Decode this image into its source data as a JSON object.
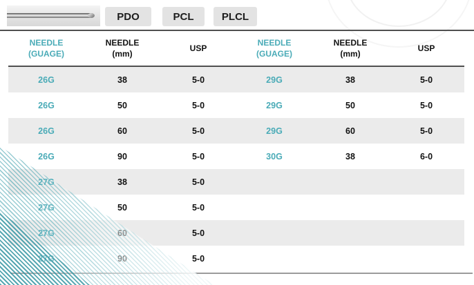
{
  "tabs": [
    {
      "label": "PDO"
    },
    {
      "label": "PCL"
    },
    {
      "label": "PLCL"
    }
  ],
  "table": {
    "headers": [
      "NEEDLE\n(GUAGE)",
      "NEEDLE\n(mm)",
      "USP",
      "NEEDLE\n(GUAGE)",
      "NEEDLE\n(mm)",
      "USP"
    ],
    "rows": [
      {
        "cells": [
          "26G",
          "38",
          "5-0",
          "29G",
          "38",
          "5-0"
        ]
      },
      {
        "cells": [
          "26G",
          "50",
          "5-0",
          "29G",
          "50",
          "5-0"
        ]
      },
      {
        "cells": [
          "26G",
          "60",
          "5-0",
          "29G",
          "60",
          "5-0"
        ]
      },
      {
        "cells": [
          "26G",
          "90",
          "5-0",
          "30G",
          "38",
          "6-0"
        ]
      },
      {
        "cells": [
          "27G",
          "38",
          "5-0",
          "",
          "",
          ""
        ]
      },
      {
        "cells": [
          "27G",
          "50",
          "5-0",
          "",
          "",
          ""
        ]
      },
      {
        "cells": [
          "27G",
          "60",
          "5-0",
          "",
          "",
          ""
        ]
      },
      {
        "cells": [
          "27G",
          "90",
          "5-0",
          "",
          "",
          ""
        ]
      }
    ]
  },
  "colors": {
    "accent": "#4aabb7",
    "row_alt": "#ebebeb",
    "tab_bg": "#e3e3e3",
    "rule_dark": "#4f4f4f",
    "rule_light": "#9b9b9b"
  }
}
